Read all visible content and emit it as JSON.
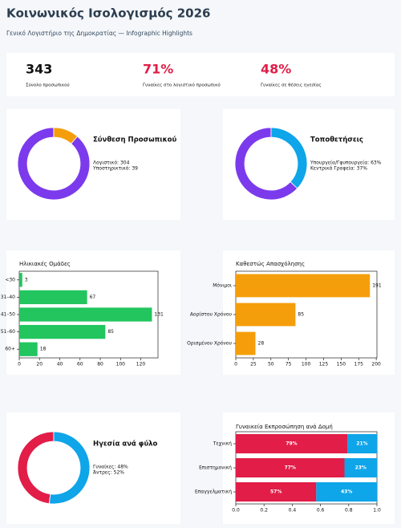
{
  "header": {
    "title": "Κοινωνικός Ισολογισμός 2026",
    "subtitle": "Γενικό Λογιστήριο της Δημοκρατίας — Infographic Highlights"
  },
  "kpis": [
    {
      "value": "343",
      "label": "Σύνολο προσωπικού",
      "color": "#111111"
    },
    {
      "value": "71%",
      "label": "Γυναίκες στο λογιστικό προσωπικό",
      "color": "#e11d48"
    },
    {
      "value": "48%",
      "label": "Γυναίκες σε θέσεις ηγεσίας",
      "color": "#e11d48"
    }
  ],
  "chart_data": [
    {
      "type": "donut",
      "title": "Σύνθεση Προσωπικού",
      "values": [
        304,
        39
      ],
      "value_labels": [
        "Λογιστικό: 304",
        "Υποστηρικτικό: 39"
      ],
      "colors": [
        "#7c3aed",
        "#f59e0b"
      ]
    },
    {
      "type": "donut",
      "title": "Τοποθετήσεις",
      "values": [
        63,
        37
      ],
      "value_labels": [
        "Υπουργεία/Γφυπουργεία: 63%",
        "Κεντρικά Γραφεία: 37%"
      ],
      "colors": [
        "#7c3aed",
        "#0ea5e9"
      ]
    },
    {
      "type": "hbar",
      "title": "Ηλικιακές Ομάδες",
      "categories": [
        "<30",
        "31–40",
        "41–50",
        "51–60",
        "60+"
      ],
      "values": [
        3,
        67,
        131,
        85,
        18
      ],
      "color": "#22c55e",
      "xlim": [
        0,
        137
      ],
      "xticks": [
        0,
        20,
        40,
        60,
        80,
        100,
        120
      ]
    },
    {
      "type": "hbar",
      "title": "Καθεστώς Απασχόλησης",
      "categories": [
        "Μόνιμοι",
        "Αορίστου Χρόνου",
        "Ορισμένου Χρόνου"
      ],
      "values": [
        191,
        85,
        28
      ],
      "color": "#f59e0b",
      "xlim": [
        0,
        201
      ],
      "xticks": [
        0,
        25,
        50,
        75,
        100,
        125,
        150,
        175,
        200
      ]
    },
    {
      "type": "donut",
      "title": "Ηγεσία ανά φύλο",
      "values": [
        48,
        52
      ],
      "value_labels": [
        "Γυναίκες: 48%",
        "Άντρες: 52%"
      ],
      "colors": [
        "#e11d48",
        "#0ea5e9"
      ]
    },
    {
      "type": "stacked_hbar",
      "title": "Γυναικεία Εκπροσώπηση ανά Δομή",
      "categories": [
        "Τεχνική",
        "Επιστημονική",
        "Επαγγελματική"
      ],
      "series": [
        {
          "color": "#e11d48",
          "values": [
            0.79,
            0.77,
            0.57
          ],
          "value_labels": [
            "79%",
            "77%",
            "57%"
          ]
        },
        {
          "color": "#0ea5e9",
          "values": [
            0.21,
            0.23,
            0.43
          ],
          "value_labels": [
            "21%",
            "23%",
            "43%"
          ]
        }
      ],
      "xlim": [
        0,
        1
      ],
      "xticks": [
        {
          "value": 0,
          "label": "0.0"
        },
        0.2,
        0.4,
        0.6,
        0.8,
        {
          "value": 1,
          "label": "1.0"
        }
      ]
    }
  ]
}
